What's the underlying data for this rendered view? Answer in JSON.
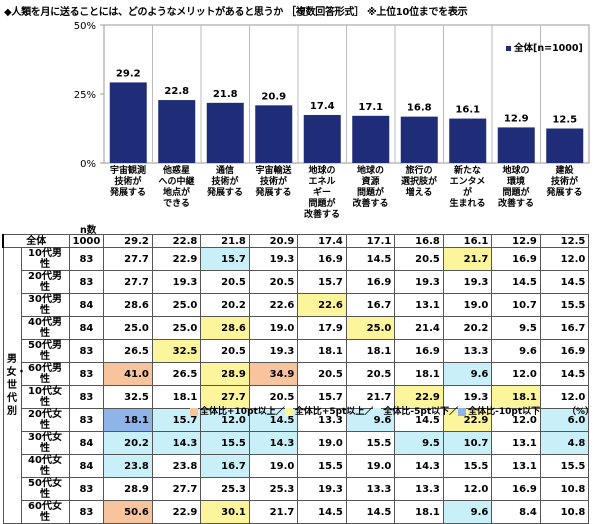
{
  "title": "◆人類を月に送ることには、どのようなメリットがあると思うか ［複数回答形式］ ※上位10位までを表示",
  "chart_data": {
    "type": "bar",
    "ylim": [
      0,
      50
    ],
    "yticks": [
      "0%",
      "25%",
      "50%"
    ],
    "ytick_values": [
      0,
      25,
      50
    ],
    "grid": true,
    "legend_position": "top-right",
    "series": [
      {
        "name": "全体[n=1000]",
        "color": "#1f2d78",
        "values": [
          29.2,
          22.8,
          21.8,
          20.9,
          17.4,
          17.1,
          16.8,
          16.1,
          12.9,
          12.5
        ]
      }
    ],
    "categories": [
      [
        "宇宙観測",
        "技術が",
        "発展する"
      ],
      [
        "他惑星",
        "への中継",
        "地点が",
        "できる"
      ],
      [
        "通信",
        "技術が",
        "発展する"
      ],
      [
        "宇宙輸送",
        "技術が",
        "発展する"
      ],
      [
        "地球の",
        "エネル",
        "ギー",
        "問題が",
        "改善する"
      ],
      [
        "地球の",
        "資源",
        "問題が",
        "改善する"
      ],
      [
        "旅行の",
        "選択肢が",
        "増える"
      ],
      [
        "新たな",
        "エンタメ",
        "が",
        "生まれる"
      ],
      [
        "地球の",
        "環境",
        "問題が",
        "改善する"
      ],
      [
        "建設",
        "技術が",
        "発展する"
      ]
    ]
  },
  "table": {
    "n_header": "n数",
    "group_label": "男女・世代別",
    "total": {
      "label": "全体",
      "n": "1000",
      "values": [
        "29.2",
        "22.8",
        "21.8",
        "20.9",
        "17.4",
        "17.1",
        "16.8",
        "16.1",
        "12.9",
        "12.5"
      ]
    },
    "rows": [
      {
        "label": "10代男性",
        "n": "83",
        "values": [
          "27.7",
          "22.9",
          "15.7",
          "19.3",
          "16.9",
          "14.5",
          "20.5",
          "21.7",
          "16.9",
          "12.0"
        ]
      },
      {
        "label": "20代男性",
        "n": "83",
        "values": [
          "27.7",
          "19.3",
          "20.5",
          "20.5",
          "15.7",
          "16.9",
          "19.3",
          "19.3",
          "14.5",
          "14.5"
        ]
      },
      {
        "label": "30代男性",
        "n": "84",
        "values": [
          "28.6",
          "25.0",
          "20.2",
          "22.6",
          "22.6",
          "16.7",
          "13.1",
          "19.0",
          "10.7",
          "15.5"
        ]
      },
      {
        "label": "40代男性",
        "n": "84",
        "values": [
          "25.0",
          "25.0",
          "28.6",
          "19.0",
          "17.9",
          "25.0",
          "21.4",
          "20.2",
          "9.5",
          "16.7"
        ]
      },
      {
        "label": "50代男性",
        "n": "83",
        "values": [
          "26.5",
          "32.5",
          "20.5",
          "19.3",
          "18.1",
          "18.1",
          "16.9",
          "13.3",
          "9.6",
          "16.9"
        ]
      },
      {
        "label": "60代男性",
        "n": "83",
        "values": [
          "41.0",
          "26.5",
          "28.9",
          "34.9",
          "20.5",
          "20.5",
          "18.1",
          "9.6",
          "12.0",
          "14.5"
        ]
      },
      {
        "label": "10代女性",
        "n": "83",
        "values": [
          "32.5",
          "18.1",
          "27.7",
          "20.5",
          "15.7",
          "21.7",
          "22.9",
          "19.3",
          "18.1",
          "12.0"
        ]
      },
      {
        "label": "20代女性",
        "n": "83",
        "values": [
          "18.1",
          "15.7",
          "12.0",
          "14.5",
          "13.3",
          "9.6",
          "14.5",
          "22.9",
          "12.0",
          "6.0"
        ]
      },
      {
        "label": "30代女性",
        "n": "84",
        "values": [
          "20.2",
          "14.3",
          "15.5",
          "14.3",
          "19.0",
          "15.5",
          "9.5",
          "10.7",
          "13.1",
          "4.8"
        ]
      },
      {
        "label": "40代女性",
        "n": "84",
        "values": [
          "23.8",
          "23.8",
          "16.7",
          "19.0",
          "15.5",
          "19.0",
          "14.3",
          "15.5",
          "13.1",
          "15.5"
        ]
      },
      {
        "label": "50代女性",
        "n": "83",
        "values": [
          "28.9",
          "27.7",
          "25.3",
          "25.3",
          "19.3",
          "13.3",
          "13.3",
          "12.0",
          "16.9",
          "10.8"
        ]
      },
      {
        "label": "60代女性",
        "n": "83",
        "values": [
          "50.6",
          "22.9",
          "30.1",
          "21.7",
          "14.5",
          "14.5",
          "18.1",
          "9.6",
          "8.4",
          "10.8"
        ]
      }
    ]
  },
  "highlight_legend": [
    {
      "label": "全体比+10pt以上／",
      "color": "#f8c49e"
    },
    {
      "label": "全体比+5pt以上／",
      "color": "#fdf59c"
    },
    {
      "label": "全体比-5pt以下／",
      "color": "#c9f0f8"
    },
    {
      "label": "全体比-10pt以下",
      "color": "#8fb4ea"
    }
  ],
  "unit": "（%）"
}
